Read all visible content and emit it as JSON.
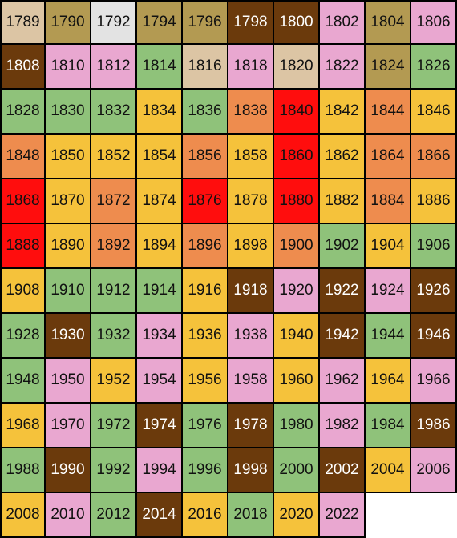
{
  "colors": {
    "T": "#dcc5a4",
    "O": "#b39a52",
    "W": "#e3e3e3",
    "B": "#6b3a0c",
    "P": "#e9a7d0",
    "G": "#8fc27a",
    "Y": "#f5c23b",
    "R": "#ff0d0d",
    "N": "#ee8c4e"
  },
  "rows": [
    [
      [
        "1789",
        "T"
      ],
      [
        "1790",
        "O"
      ],
      [
        "1792",
        "W"
      ],
      [
        "1794",
        "O"
      ],
      [
        "1796",
        "O"
      ],
      [
        "1798",
        "B"
      ],
      [
        "1800",
        "B"
      ],
      [
        "1802",
        "P"
      ],
      [
        "1804",
        "O"
      ],
      [
        "1806",
        "P"
      ]
    ],
    [
      [
        "1808",
        "B"
      ],
      [
        "1810",
        "P"
      ],
      [
        "1812",
        "P"
      ],
      [
        "1814",
        "G"
      ],
      [
        "1816",
        "T"
      ],
      [
        "1818",
        "P"
      ],
      [
        "1820",
        "T"
      ],
      [
        "1822",
        "P"
      ],
      [
        "1824",
        "O"
      ],
      [
        "1826",
        "G"
      ]
    ],
    [
      [
        "1828",
        "G"
      ],
      [
        "1830",
        "G"
      ],
      [
        "1832",
        "G"
      ],
      [
        "1834",
        "Y"
      ],
      [
        "1836",
        "G"
      ],
      [
        "1838",
        "N"
      ],
      [
        "1840",
        "R"
      ],
      [
        "1842",
        "Y"
      ],
      [
        "1844",
        "N"
      ],
      [
        "1846",
        "Y"
      ]
    ],
    [
      [
        "1848",
        "N"
      ],
      [
        "1850",
        "Y"
      ],
      [
        "1852",
        "Y"
      ],
      [
        "1854",
        "Y"
      ],
      [
        "1856",
        "N"
      ],
      [
        "1858",
        "Y"
      ],
      [
        "1860",
        "R"
      ],
      [
        "1862",
        "Y"
      ],
      [
        "1864",
        "N"
      ],
      [
        "1866",
        "N"
      ]
    ],
    [
      [
        "1868",
        "R"
      ],
      [
        "1870",
        "Y"
      ],
      [
        "1872",
        "N"
      ],
      [
        "1874",
        "Y"
      ],
      [
        "1876",
        "R"
      ],
      [
        "1878",
        "Y"
      ],
      [
        "1880",
        "R"
      ],
      [
        "1882",
        "Y"
      ],
      [
        "1884",
        "N"
      ],
      [
        "1886",
        "Y"
      ]
    ],
    [
      [
        "1888",
        "R"
      ],
      [
        "1890",
        "Y"
      ],
      [
        "1892",
        "N"
      ],
      [
        "1894",
        "Y"
      ],
      [
        "1896",
        "N"
      ],
      [
        "1898",
        "Y"
      ],
      [
        "1900",
        "N"
      ],
      [
        "1902",
        "G"
      ],
      [
        "1904",
        "Y"
      ],
      [
        "1906",
        "G"
      ]
    ],
    [
      [
        "1908",
        "Y"
      ],
      [
        "1910",
        "G"
      ],
      [
        "1912",
        "G"
      ],
      [
        "1914",
        "G"
      ],
      [
        "1916",
        "Y"
      ],
      [
        "1918",
        "B"
      ],
      [
        "1920",
        "P"
      ],
      [
        "1922",
        "B"
      ],
      [
        "1924",
        "P"
      ],
      [
        "1926",
        "B"
      ]
    ],
    [
      [
        "1928",
        "G"
      ],
      [
        "1930",
        "B"
      ],
      [
        "1932",
        "G"
      ],
      [
        "1934",
        "P"
      ],
      [
        "1936",
        "Y"
      ],
      [
        "1938",
        "P"
      ],
      [
        "1940",
        "Y"
      ],
      [
        "1942",
        "B"
      ],
      [
        "1944",
        "G"
      ],
      [
        "1946",
        "B"
      ]
    ],
    [
      [
        "1948",
        "G"
      ],
      [
        "1950",
        "P"
      ],
      [
        "1952",
        "Y"
      ],
      [
        "1954",
        "P"
      ],
      [
        "1956",
        "Y"
      ],
      [
        "1958",
        "P"
      ],
      [
        "1960",
        "Y"
      ],
      [
        "1962",
        "P"
      ],
      [
        "1964",
        "Y"
      ],
      [
        "1966",
        "P"
      ]
    ],
    [
      [
        "1968",
        "Y"
      ],
      [
        "1970",
        "P"
      ],
      [
        "1972",
        "G"
      ],
      [
        "1974",
        "B"
      ],
      [
        "1976",
        "G"
      ],
      [
        "1978",
        "B"
      ],
      [
        "1980",
        "G"
      ],
      [
        "1982",
        "P"
      ],
      [
        "1984",
        "G"
      ],
      [
        "1986",
        "B"
      ]
    ],
    [
      [
        "1988",
        "G"
      ],
      [
        "1990",
        "B"
      ],
      [
        "1992",
        "G"
      ],
      [
        "1994",
        "P"
      ],
      [
        "1996",
        "G"
      ],
      [
        "1998",
        "B"
      ],
      [
        "2000",
        "G"
      ],
      [
        "2002",
        "B"
      ],
      [
        "2004",
        "Y"
      ],
      [
        "2006",
        "P"
      ]
    ],
    [
      [
        "2008",
        "Y"
      ],
      [
        "2010",
        "P"
      ],
      [
        "2012",
        "G"
      ],
      [
        "2014",
        "B"
      ],
      [
        "2016",
        "Y"
      ],
      [
        "2018",
        "G"
      ],
      [
        "2020",
        "Y"
      ],
      [
        "2022",
        "P"
      ]
    ]
  ]
}
